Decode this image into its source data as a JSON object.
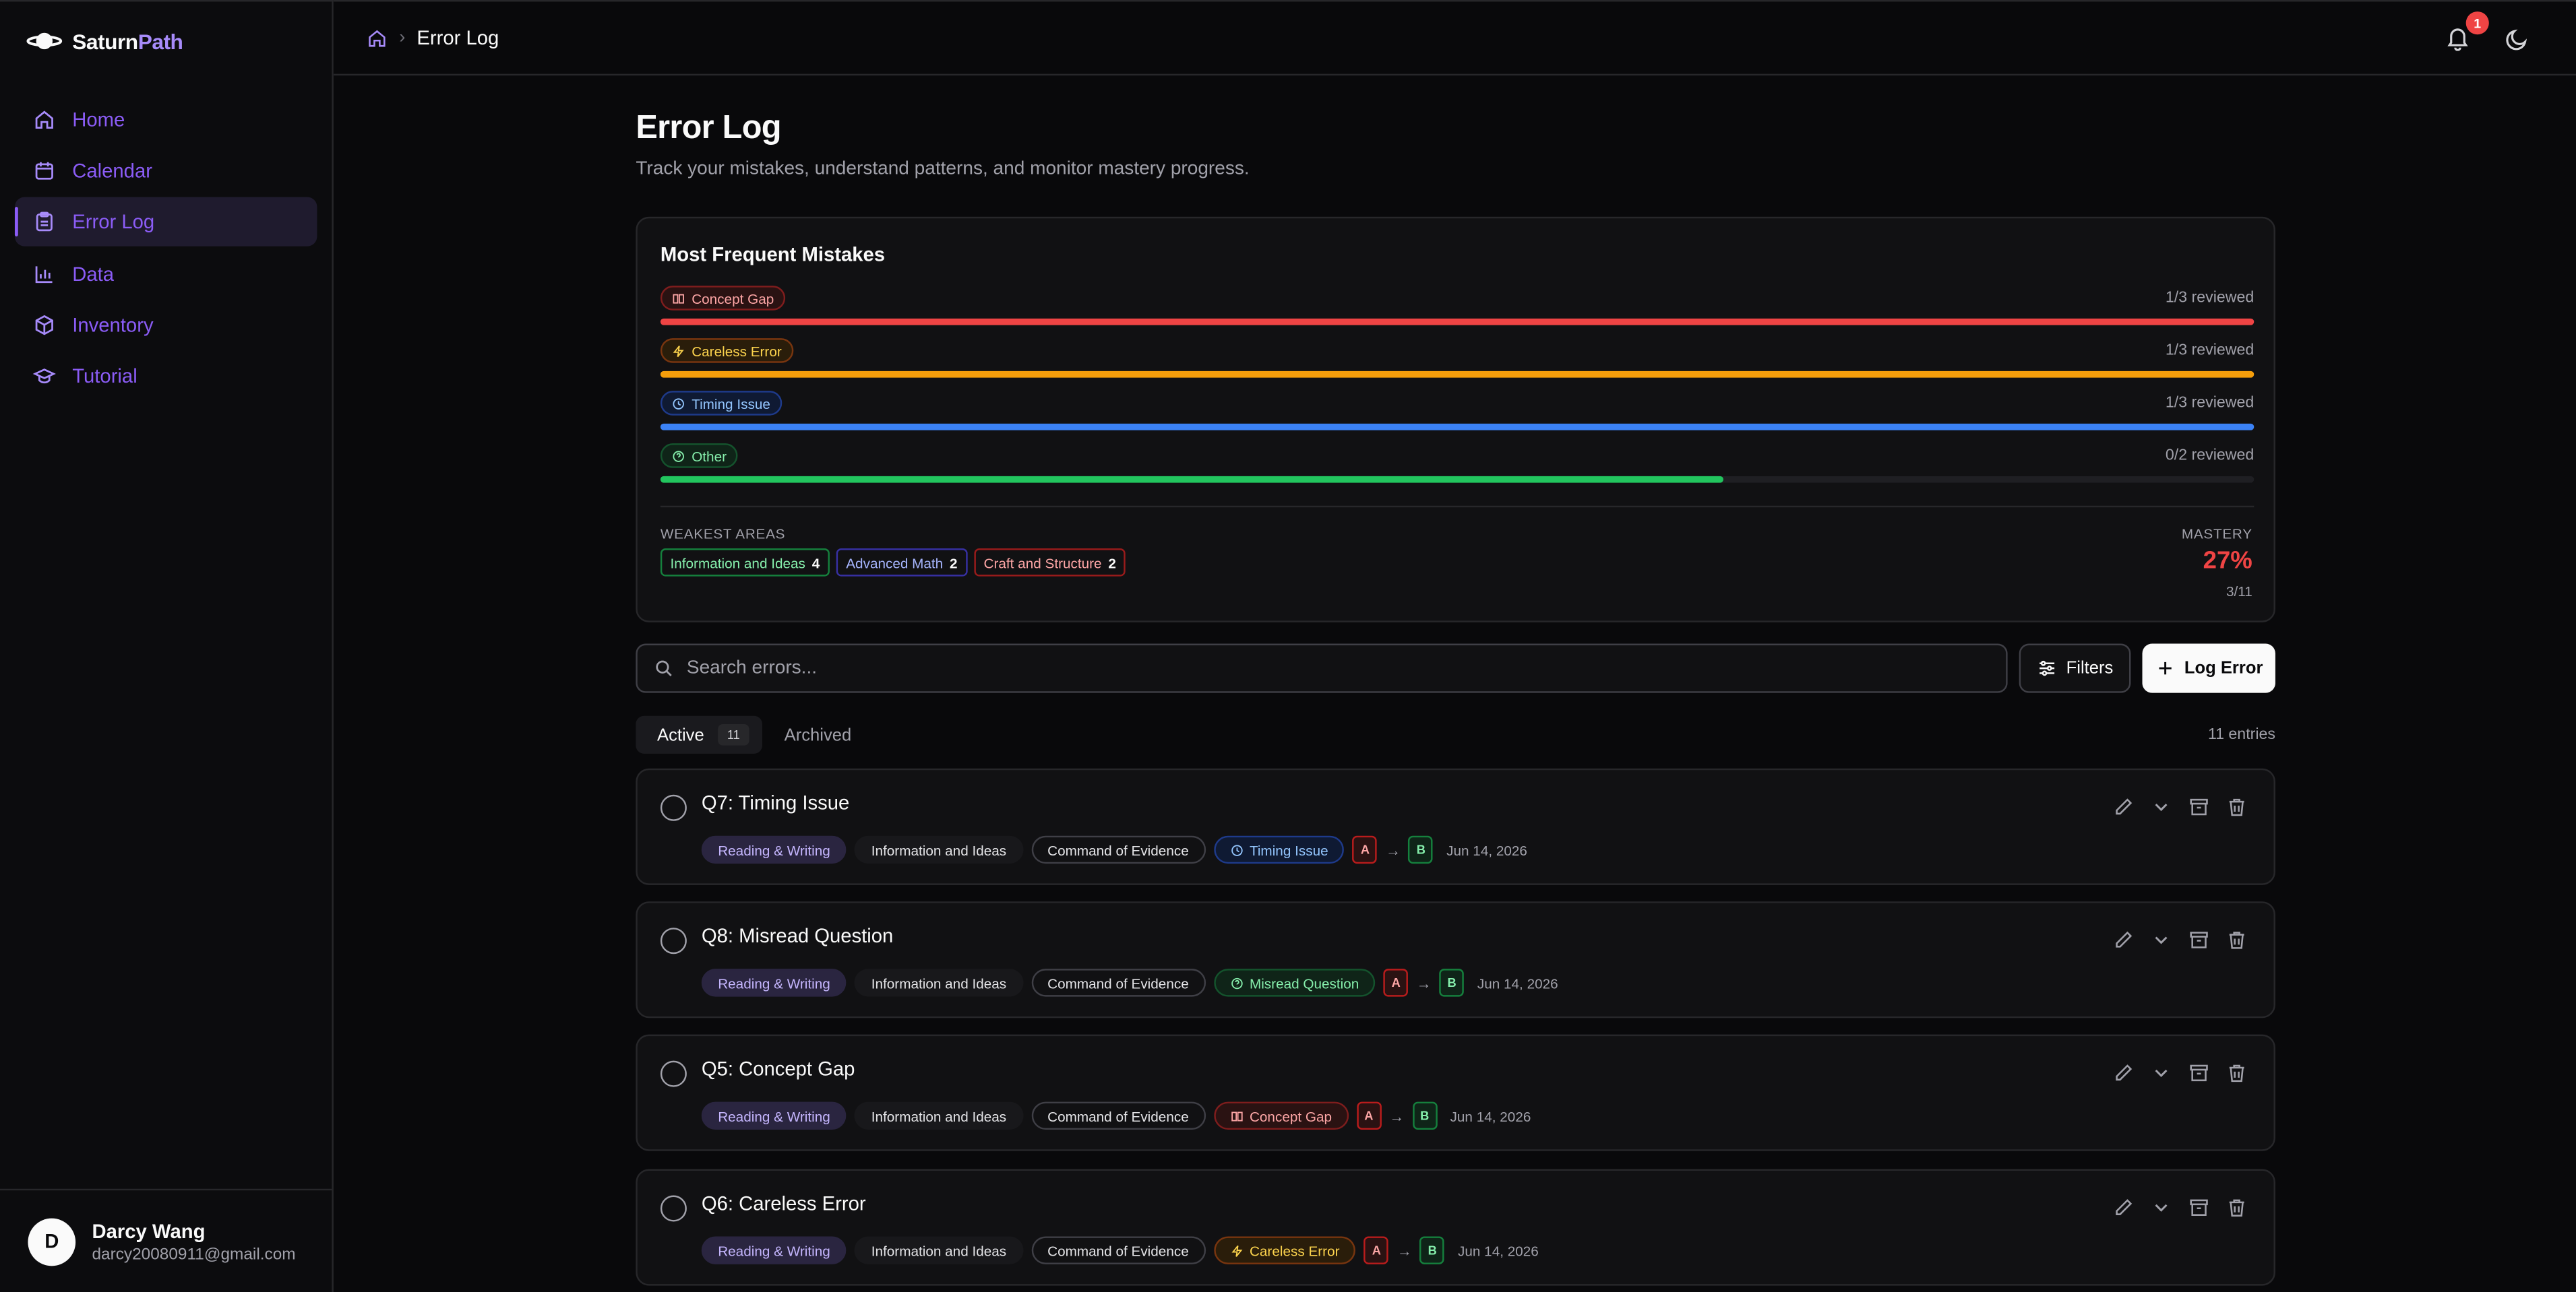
{
  "brand": {
    "name_a": "Saturn",
    "name_b": "Path"
  },
  "nav": [
    {
      "label": "Home",
      "icon": "home-icon"
    },
    {
      "label": "Calendar",
      "icon": "calendar-icon"
    },
    {
      "label": "Error Log",
      "icon": "clipboard-icon"
    },
    {
      "label": "Data",
      "icon": "bar-chart-icon"
    },
    {
      "label": "Inventory",
      "icon": "box-icon"
    },
    {
      "label": "Tutorial",
      "icon": "graduation-cap-icon"
    }
  ],
  "user": {
    "initial": "D",
    "name": "Darcy Wang",
    "email": "darcy20080911@gmail.com"
  },
  "breadcrumb": {
    "current": "Error Log"
  },
  "notifications": {
    "count": "1"
  },
  "page": {
    "title": "Error Log",
    "subtitle": "Track your mistakes, understand patterns, and monitor mastery progress."
  },
  "summary": {
    "title": "Most Frequent Mistakes",
    "mistakes": [
      {
        "label": "Concept Gap",
        "reviewed": "1/3 reviewed",
        "fraction": 1.0,
        "color": "#ef4444"
      },
      {
        "label": "Careless Error",
        "reviewed": "1/3 reviewed",
        "fraction": 1.0,
        "color": "#f59e0b"
      },
      {
        "label": "Timing Issue",
        "reviewed": "1/3 reviewed",
        "fraction": 1.0,
        "color": "#3b82f6"
      },
      {
        "label": "Other",
        "reviewed": "0/2 reviewed",
        "fraction": 0.667,
        "color": "#22c55e"
      }
    ],
    "weakest_label": "WEAKEST AREAS",
    "weakest": [
      {
        "label": "Information and Ideas",
        "count": "4"
      },
      {
        "label": "Advanced Math",
        "count": "2"
      },
      {
        "label": "Craft and Structure",
        "count": "2"
      }
    ],
    "mastery_label": "MASTERY",
    "mastery_pct": "27%",
    "mastery_frac": "3/11"
  },
  "search": {
    "placeholder": "Search errors..."
  },
  "buttons": {
    "filters": "Filters",
    "log_error": "Log Error"
  },
  "tabs": {
    "active": "Active",
    "active_count": "11",
    "archived": "Archived"
  },
  "entries_text": "11 entries",
  "errors": [
    {
      "title": "Q7: Timing Issue",
      "subject": "Reading & Writing",
      "domain": "Information and Ideas",
      "skill": "Command of Evidence",
      "type": "Timing Issue",
      "from": "A",
      "to": "B",
      "date": "Jun 14, 2026"
    },
    {
      "title": "Q8: Misread Question",
      "subject": "Reading & Writing",
      "domain": "Information and Ideas",
      "skill": "Command of Evidence",
      "type": "Misread Question",
      "from": "A",
      "to": "B",
      "date": "Jun 14, 2026"
    },
    {
      "title": "Q5: Concept Gap",
      "subject": "Reading & Writing",
      "domain": "Information and Ideas",
      "skill": "Command of Evidence",
      "type": "Concept Gap",
      "from": "A",
      "to": "B",
      "date": "Jun 14, 2026"
    },
    {
      "title": "Q6: Careless Error",
      "subject": "Reading & Writing",
      "domain": "Information and Ideas",
      "skill": "Command of Evidence",
      "type": "Careless Error",
      "from": "A",
      "to": "B",
      "date": "Jun 14, 2026"
    }
  ]
}
